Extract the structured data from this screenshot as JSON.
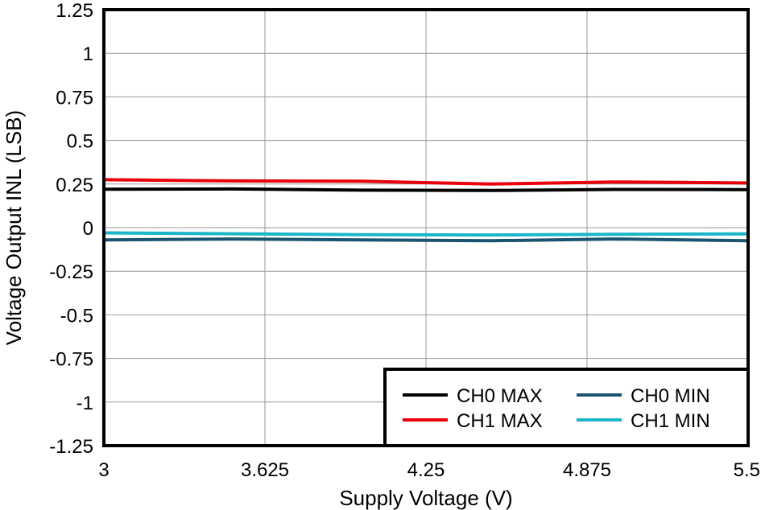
{
  "chart_data": {
    "type": "line",
    "title": "",
    "xlabel": "Supply Voltage (V)",
    "ylabel": "Voltage Output INL (LSB)",
    "xlim": [
      3,
      5.5
    ],
    "ylim": [
      -1.25,
      1.25
    ],
    "xticks": [
      "3",
      "3.625",
      "4.25",
      "4.875",
      "5.5"
    ],
    "yticks": [
      "1.25",
      "1",
      "0.75",
      "0.5",
      "0.25",
      "0",
      "-0.25",
      "-0.5",
      "-0.75",
      "-1",
      "-1.25"
    ],
    "grid": true,
    "legend_position": "bottom-right",
    "x": [
      3,
      3.5,
      4,
      4.5,
      5,
      5.5
    ],
    "series": [
      {
        "name": "CH0 MAX",
        "color": "#000000",
        "values": [
          0.22,
          0.222,
          0.215,
          0.213,
          0.219,
          0.218
        ]
      },
      {
        "name": "CH1 MAX",
        "color": "#e8000b",
        "values": [
          0.275,
          0.268,
          0.266,
          0.25,
          0.262,
          0.256
        ]
      },
      {
        "name": "CH0 MIN",
        "color": "#1b5470",
        "values": [
          -0.07,
          -0.065,
          -0.07,
          -0.075,
          -0.065,
          -0.075
        ]
      },
      {
        "name": "CH1 MIN",
        "color": "#1bb6c9",
        "values": [
          -0.03,
          -0.035,
          -0.04,
          -0.042,
          -0.038,
          -0.036
        ]
      }
    ]
  }
}
